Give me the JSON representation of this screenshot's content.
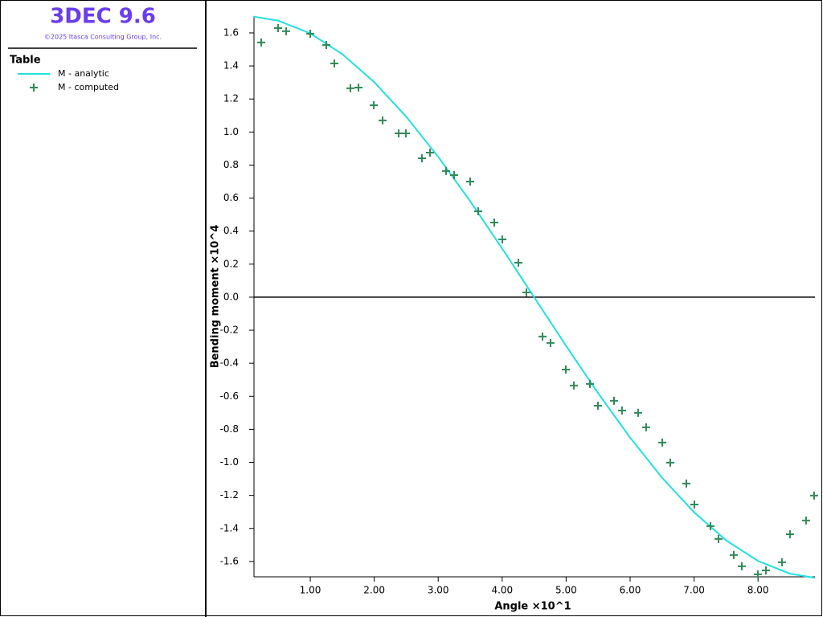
{
  "header": {
    "title": "3DEC 9.6",
    "copyright": "©2025 Itasca Consulting Group, Inc."
  },
  "chart_data": {
    "type": "line",
    "legend_title": "Table",
    "xlabel": "Angle ×10^1",
    "ylabel": "Bending moment ×10^4",
    "xlim": [
      0.12,
      8.89
    ],
    "ylim": [
      -1.693,
      1.702
    ],
    "xticks": [
      {
        "value": 1,
        "label": "1.00"
      },
      {
        "value": 2,
        "label": "2.00"
      },
      {
        "value": 3,
        "label": "3.00"
      },
      {
        "value": 4,
        "label": "4.00"
      },
      {
        "value": 5,
        "label": "5.00"
      },
      {
        "value": 6,
        "label": "6.00"
      },
      {
        "value": 7,
        "label": "7.00"
      },
      {
        "value": 8,
        "label": "8.00"
      }
    ],
    "yticks": [
      1.6,
      1.4,
      1.2,
      {
        "value": 1,
        "label": "1.0"
      },
      0.8,
      0.6,
      0.4,
      0.2,
      {
        "value": 0,
        "label": "0.0"
      },
      -0.2,
      -0.4,
      -0.6,
      -0.8,
      {
        "value": -1,
        "label": "-1.0"
      },
      -1.2,
      -1.4,
      -1.6
    ],
    "zero_line": true,
    "series": [
      {
        "name": "M - analytic",
        "color": "#22e0e0",
        "style": "line",
        "x": [
          0.1125,
          0.5,
          1,
          1.5,
          2,
          2.5,
          3,
          3.5,
          4,
          4.5,
          5,
          5.5,
          6,
          6.5,
          7,
          7.5,
          8,
          8.5,
          8.8875
        ],
        "values": [
          1.699,
          1.674,
          1.597,
          1.472,
          1.302,
          1.093,
          0.85,
          0.581,
          0.295,
          0,
          -0.295,
          -0.581,
          -0.85,
          -1.093,
          -1.302,
          -1.472,
          -1.597,
          -1.674,
          -1.699
        ]
      },
      {
        "name": "M - computed",
        "color": "#2e8b57",
        "style": "plus",
        "x": [
          0.234,
          0.497,
          0.623,
          1.0,
          1.251,
          1.377,
          1.628,
          1.754,
          1.993,
          2.131,
          2.382,
          2.495,
          2.746,
          2.872,
          3.123,
          3.249,
          3.5,
          3.626,
          3.877,
          4.003,
          4.254,
          4.379,
          4.631,
          4.756,
          4.995,
          5.121,
          5.372,
          5.497,
          5.749,
          5.874,
          6.126,
          6.251,
          6.503,
          6.628,
          6.879,
          7.005,
          7.256,
          7.382,
          7.621,
          7.746,
          7.997,
          8.123,
          8.374,
          8.5,
          8.751,
          8.877
        ],
        "values": [
          1.542,
          1.629,
          1.61,
          1.595,
          1.527,
          1.415,
          1.265,
          1.269,
          1.162,
          1.07,
          0.992,
          0.992,
          0.841,
          0.875,
          0.764,
          0.739,
          0.7,
          0.52,
          0.452,
          0.35,
          0.209,
          0.029,
          -0.238,
          -0.277,
          -0.438,
          -0.535,
          -0.525,
          -0.657,
          -0.627,
          -0.686,
          -0.7,
          -0.788,
          -0.88,
          -1.002,
          -1.128,
          -1.255,
          -1.386,
          -1.464,
          -1.561,
          -1.629,
          -1.678,
          -1.654,
          -1.605,
          -1.435,
          -1.352,
          -1.201
        ]
      }
    ]
  }
}
